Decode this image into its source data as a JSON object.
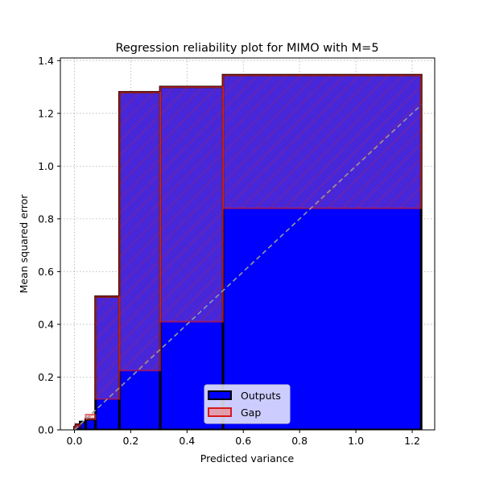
{
  "chart_data": {
    "type": "bar",
    "title": "Regression reliability plot for MIMO with M=5",
    "xlabel": "Predicted variance",
    "ylabel": "Mean squared error",
    "xlim": [
      -0.05,
      1.28
    ],
    "ylim": [
      0,
      1.41
    ],
    "xticks": [
      "0.0",
      "0.2",
      "0.4",
      "0.6",
      "0.8",
      "1.0",
      "1.2"
    ],
    "yticks": [
      "0.0",
      "0.2",
      "0.4",
      "0.6",
      "0.8",
      "1.0",
      "1.2",
      "1.4"
    ],
    "grid": true,
    "legend_position": "lower center",
    "bins": [
      {
        "left": 0.0,
        "right": 0.005,
        "predicted_variance": 0.003,
        "mse": 0.01
      },
      {
        "left": 0.005,
        "right": 0.02,
        "predicted_variance": 0.013,
        "mse": 0.02
      },
      {
        "left": 0.02,
        "right": 0.04,
        "predicted_variance": 0.03,
        "mse": 0.03
      },
      {
        "left": 0.04,
        "right": 0.075,
        "predicted_variance": 0.058,
        "mse": 0.04
      },
      {
        "left": 0.075,
        "right": 0.16,
        "predicted_variance": 0.117,
        "mse": 0.505
      },
      {
        "left": 0.16,
        "right": 0.305,
        "predicted_variance": 0.225,
        "mse": 1.28
      },
      {
        "left": 0.305,
        "right": 0.528,
        "predicted_variance": 0.41,
        "mse": 1.3
      },
      {
        "left": 0.528,
        "right": 1.232,
        "predicted_variance": 0.84,
        "mse": 1.345
      }
    ],
    "series": [
      {
        "name": "Outputs",
        "color": "#0000ff",
        "edge_color": "#000000"
      },
      {
        "name": "Gap",
        "color": "#f08080",
        "edge_color": "#8b0000",
        "hatch": "/"
      }
    ],
    "reference_line": {
      "style": "dashed",
      "color": "#999999",
      "from": [
        0,
        0
      ],
      "to": [
        1.232,
        1.232
      ]
    }
  }
}
